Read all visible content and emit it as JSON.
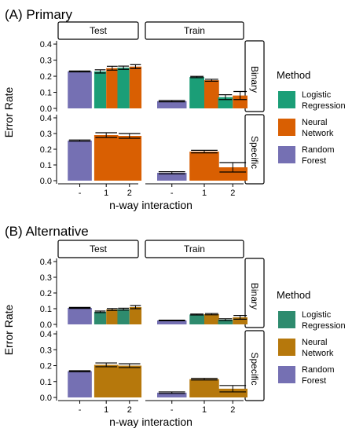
{
  "chart_data": [
    {
      "type": "bar",
      "title": "(A) Primary",
      "xlabel": "n-way interaction",
      "ylabel": "Error Rate",
      "ylim": [
        0,
        0.42
      ],
      "y_ticks": [
        0.0,
        0.1,
        0.2,
        0.3,
        0.4
      ],
      "y_tick_labels": [
        "0.0",
        "0.1",
        "0.2",
        "0.3",
        "0.4"
      ],
      "categories": [
        "-",
        "1",
        "2"
      ],
      "facet_columns": [
        "Test",
        "Train"
      ],
      "facet_rows": [
        "Binary",
        "Specific"
      ],
      "legend_position": "right",
      "series": [
        {
          "name": "Logistic Regression",
          "color": "#1b9e77"
        },
        {
          "name": "Neural Network",
          "color": "#d95f02"
        },
        {
          "name": "Random Forest",
          "color": "#7570b3"
        }
      ],
      "panels": [
        {
          "col": "Test",
          "row": "Binary",
          "bars": [
            {
              "category": "-",
              "series": "Random Forest",
              "value": 0.23,
              "err": 0.003
            },
            {
              "category": "1",
              "series": "Logistic Regression",
              "value": 0.23,
              "err": 0.01
            },
            {
              "category": "1",
              "series": "Neural Network",
              "value": 0.25,
              "err": 0.012
            },
            {
              "category": "2",
              "series": "Logistic Regression",
              "value": 0.253,
              "err": 0.01
            },
            {
              "category": "2",
              "series": "Neural Network",
              "value": 0.26,
              "err": 0.012
            }
          ]
        },
        {
          "col": "Train",
          "row": "Binary",
          "bars": [
            {
              "category": "-",
              "series": "Random Forest",
              "value": 0.045,
              "err": 0.004
            },
            {
              "category": "1",
              "series": "Logistic Regression",
              "value": 0.195,
              "err": 0.004
            },
            {
              "category": "1",
              "series": "Neural Network",
              "value": 0.175,
              "err": 0.006
            },
            {
              "category": "2",
              "series": "Logistic Regression",
              "value": 0.07,
              "err": 0.015
            },
            {
              "category": "2",
              "series": "Neural Network",
              "value": 0.08,
              "err": 0.025
            }
          ]
        },
        {
          "col": "Test",
          "row": "Specific",
          "bars": [
            {
              "category": "-",
              "series": "Random Forest",
              "value": 0.255,
              "err": 0.004
            },
            {
              "category": "1",
              "series": "Neural Network",
              "value": 0.29,
              "err": 0.015
            },
            {
              "category": "2",
              "series": "Neural Network",
              "value": 0.285,
              "err": 0.015
            }
          ]
        },
        {
          "col": "Train",
          "row": "Specific",
          "bars": [
            {
              "category": "-",
              "series": "Random Forest",
              "value": 0.05,
              "err": 0.007
            },
            {
              "category": "1",
              "series": "Neural Network",
              "value": 0.185,
              "err": 0.008
            },
            {
              "category": "2",
              "series": "Neural Network",
              "value": 0.085,
              "err": 0.03
            }
          ]
        }
      ]
    },
    {
      "type": "bar",
      "title": "(B) Alternative",
      "xlabel": "n-way interaction",
      "ylabel": "Error Rate",
      "ylim": [
        0,
        0.42
      ],
      "y_ticks": [
        0.0,
        0.1,
        0.2,
        0.3,
        0.4
      ],
      "y_tick_labels": [
        "0.0",
        "0.1",
        "0.2",
        "0.3",
        "0.4"
      ],
      "categories": [
        "-",
        "1",
        "2"
      ],
      "facet_columns": [
        "Test",
        "Train"
      ],
      "facet_rows": [
        "Binary",
        "Specific"
      ],
      "legend_position": "right",
      "series": [
        {
          "name": "Logistic Regression",
          "color": "#2e8b6e"
        },
        {
          "name": "Neural Network",
          "color": "#b6780c"
        },
        {
          "name": "Random Forest",
          "color": "#7570b3"
        }
      ],
      "panels": [
        {
          "col": "Test",
          "row": "Binary",
          "bars": [
            {
              "category": "-",
              "series": "Random Forest",
              "value": 0.105,
              "err": 0.003
            },
            {
              "category": "1",
              "series": "Logistic Regression",
              "value": 0.08,
              "err": 0.005
            },
            {
              "category": "1",
              "series": "Neural Network",
              "value": 0.095,
              "err": 0.006
            },
            {
              "category": "2",
              "series": "Logistic Regression",
              "value": 0.097,
              "err": 0.006
            },
            {
              "category": "2",
              "series": "Neural Network",
              "value": 0.11,
              "err": 0.01
            }
          ]
        },
        {
          "col": "Train",
          "row": "Binary",
          "bars": [
            {
              "category": "-",
              "series": "Random Forest",
              "value": 0.025,
              "err": 0.002
            },
            {
              "category": "1",
              "series": "Logistic Regression",
              "value": 0.063,
              "err": 0.003
            },
            {
              "category": "1",
              "series": "Neural Network",
              "value": 0.065,
              "err": 0.004
            },
            {
              "category": "2",
              "series": "Logistic Regression",
              "value": 0.03,
              "err": 0.006
            },
            {
              "category": "2",
              "series": "Neural Network",
              "value": 0.045,
              "err": 0.012
            }
          ]
        },
        {
          "col": "Test",
          "row": "Specific",
          "bars": [
            {
              "category": "-",
              "series": "Random Forest",
              "value": 0.165,
              "err": 0.003
            },
            {
              "category": "1",
              "series": "Neural Network",
              "value": 0.205,
              "err": 0.012
            },
            {
              "category": "2",
              "series": "Neural Network",
              "value": 0.2,
              "err": 0.012
            }
          ]
        },
        {
          "col": "Train",
          "row": "Specific",
          "bars": [
            {
              "category": "-",
              "series": "Random Forest",
              "value": 0.03,
              "err": 0.005
            },
            {
              "category": "1",
              "series": "Neural Network",
              "value": 0.115,
              "err": 0.005
            },
            {
              "category": "2",
              "series": "Neural Network",
              "value": 0.055,
              "err": 0.02
            }
          ]
        }
      ]
    }
  ],
  "legend": {
    "title": "Method",
    "items": [
      {
        "line1": "Logistic",
        "line2": "Regression"
      },
      {
        "line1": "Neural",
        "line2": "Network"
      },
      {
        "line1": "Random",
        "line2": "Forest"
      }
    ]
  }
}
